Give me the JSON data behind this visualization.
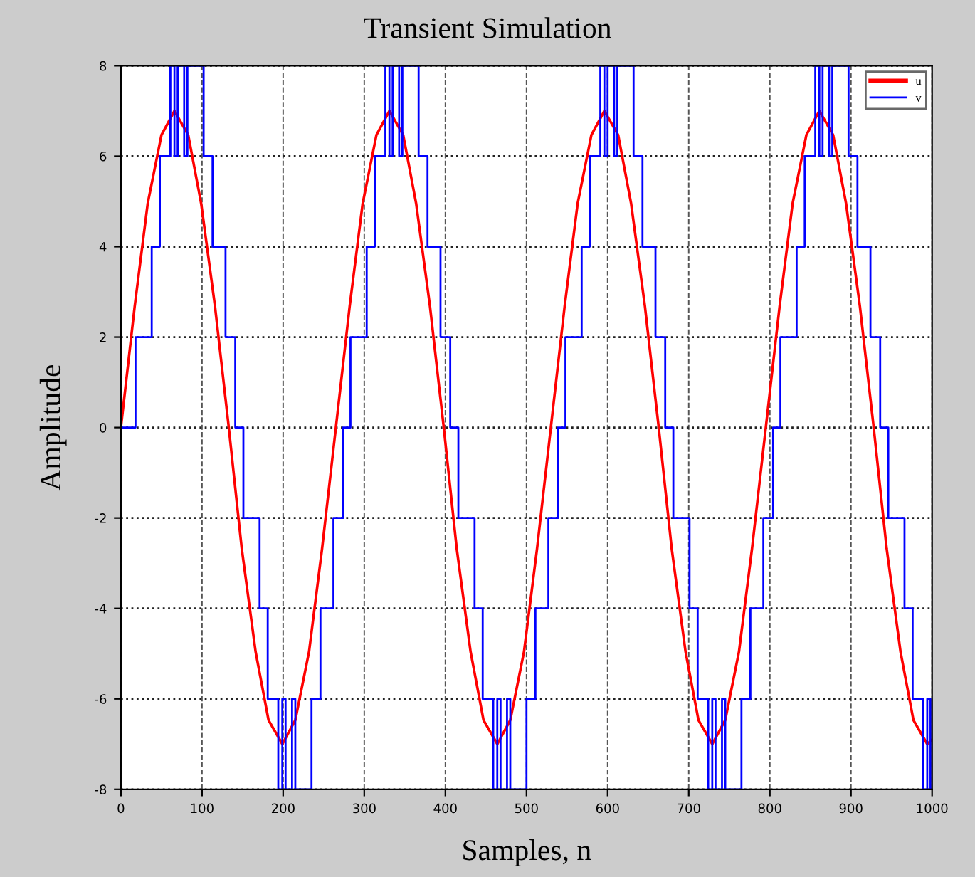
{
  "chart_data": {
    "type": "line",
    "title": "Transient Simulation",
    "xlabel": "Samples, n",
    "ylabel": "Amplitude",
    "xlim": [
      0,
      1000
    ],
    "xticks": [
      0,
      100,
      200,
      300,
      400,
      500,
      600,
      700,
      800,
      900,
      1000
    ],
    "ylim": [
      -8,
      8
    ],
    "yticks": [
      -8,
      -6,
      -4,
      -2,
      0,
      2,
      4,
      6,
      8
    ],
    "grid": true,
    "legend": "top right",
    "marker": "none",
    "line_style": "solid",
    "series": [
      {
        "name": "u",
        "color": "#ff0000",
        "x": [
          0,
          17,
          33,
          50,
          66,
          83,
          99,
          116,
          133,
          149,
          166,
          182,
          199,
          215,
          232,
          248,
          265,
          282,
          298,
          315,
          331,
          348,
          364,
          381,
          398,
          414,
          431,
          447,
          464,
          480,
          497,
          513,
          530,
          547,
          563,
          580,
          596,
          613,
          629,
          646,
          663,
          679,
          696,
          712,
          729,
          745,
          762,
          778,
          795,
          812,
          828,
          845,
          861,
          878,
          894,
          911,
          928,
          944,
          961,
          977,
          994,
          1000
        ],
        "values": [
          0,
          2.68,
          4.95,
          6.47,
          7,
          6.47,
          4.95,
          2.68,
          0,
          -2.68,
          -4.95,
          -6.47,
          -7,
          -6.47,
          -4.95,
          -2.68,
          0,
          2.68,
          4.95,
          6.47,
          7,
          6.47,
          4.95,
          2.68,
          0,
          -2.68,
          -4.95,
          -6.47,
          -7,
          -6.47,
          -4.95,
          -2.68,
          0,
          2.68,
          4.95,
          6.47,
          7,
          6.47,
          4.95,
          2.68,
          0,
          -2.68,
          -4.95,
          -6.47,
          -7,
          -6.47,
          -4.95,
          -2.68,
          0,
          2.68,
          4.95,
          6.47,
          7,
          6.47,
          4.95,
          2.68,
          0,
          -2.68,
          -4.95,
          -6.47,
          -7,
          -6.9
        ]
      },
      {
        "name": "v",
        "color": "#0000ff",
        "type": "step",
        "x": [
          0,
          18,
          38,
          48,
          61,
          66,
          70,
          78,
          82,
          102,
          113,
          129,
          141,
          151,
          171,
          181,
          194,
          199,
          203,
          211,
          215,
          235,
          246,
          262,
          274,
          283,
          303,
          313,
          326,
          331,
          335,
          343,
          347,
          367,
          378,
          394,
          406,
          416,
          436,
          446,
          459,
          464,
          468,
          476,
          480,
          500,
          511,
          527,
          539,
          548,
          568,
          578,
          591,
          596,
          600,
          608,
          612,
          632,
          643,
          659,
          671,
          681,
          701,
          711,
          724,
          729,
          733,
          741,
          745,
          765,
          776,
          792,
          804,
          813,
          833,
          843,
          856,
          861,
          865,
          873,
          877,
          897,
          908,
          924,
          936,
          946,
          966,
          976,
          989,
          994,
          998,
          1000
        ],
        "values": [
          0,
          2,
          4,
          6,
          8,
          6,
          8,
          6,
          8,
          6,
          4,
          2,
          0,
          -2,
          -4,
          -6,
          -8,
          -6,
          -8,
          -6,
          -8,
          -6,
          -4,
          -2,
          0,
          2,
          4,
          6,
          8,
          6,
          8,
          6,
          8,
          6,
          4,
          2,
          0,
          -2,
          -4,
          -6,
          -8,
          -6,
          -8,
          -6,
          -8,
          -6,
          -4,
          -2,
          0,
          2,
          4,
          6,
          8,
          6,
          8,
          6,
          8,
          6,
          4,
          2,
          0,
          -2,
          -4,
          -6,
          -8,
          -6,
          -8,
          -6,
          -8,
          -6,
          -4,
          -2,
          0,
          2,
          4,
          6,
          8,
          6,
          8,
          6,
          8,
          6,
          4,
          2,
          0,
          -2,
          -4,
          -6,
          -8,
          -6,
          -8,
          -8
        ]
      }
    ]
  }
}
